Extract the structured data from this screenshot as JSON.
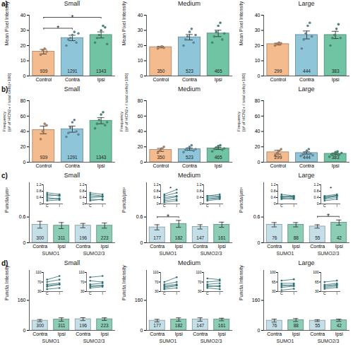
{
  "chart_data": [
    {
      "type": "bar",
      "panel": "a)",
      "title": "Small",
      "ylabel": "Mean Pixel Intensity",
      "categories": [
        "Control",
        "Contra",
        "Ipsi"
      ],
      "values": [
        16,
        25,
        27
      ],
      "errors": [
        1.5,
        1.8,
        2.0
      ],
      "counts": [
        939,
        1291,
        1343
      ],
      "colors": [
        "#f4bb8e",
        "#8ec5d9",
        "#70c3a3"
      ],
      "points": [
        [
          14,
          17,
          18,
          16
        ],
        [
          20,
          24,
          25,
          27,
          29,
          22,
          28
        ],
        [
          22,
          25,
          27,
          30,
          33,
          32,
          21
        ]
      ],
      "annotations": [
        {
          "from": 0,
          "to": 1,
          "text": "*"
        },
        {
          "from": 0,
          "to": 2,
          "text": "*"
        }
      ],
      "ylim": [
        0,
        40
      ],
      "yticks": [
        0,
        10,
        20,
        30,
        40
      ]
    },
    {
      "type": "bar",
      "title": "Medium",
      "ylabel": "Mean Pixel Intensity",
      "categories": [
        "Control",
        "Contra",
        "Ipsi"
      ],
      "values": [
        19,
        25.5,
        28
      ],
      "errors": [
        0.5,
        1.8,
        2.1
      ],
      "counts": [
        350,
        523,
        465
      ],
      "colors": [
        "#f4bb8e",
        "#8ec5d9",
        "#70c3a3"
      ],
      "points": [
        [
          18,
          19,
          19.5,
          18.5
        ],
        [
          20,
          24,
          26,
          29,
          31,
          22,
          27
        ],
        [
          22,
          26,
          29,
          33,
          35,
          24,
          28
        ]
      ],
      "ylim": [
        0,
        40
      ],
      "yticks": [
        0,
        10,
        20,
        30,
        40
      ]
    },
    {
      "type": "bar",
      "title": "Large",
      "ylabel": "Mean Pixel Intensity",
      "categories": [
        "Control",
        "Contra",
        "Ipsi"
      ],
      "values": [
        21,
        27,
        27
      ],
      "errors": [
        0.6,
        2.6,
        2.4
      ],
      "counts": [
        299,
        444,
        383
      ],
      "colors": [
        "#f4bb8e",
        "#8ec5d9",
        "#70c3a3"
      ],
      "points": [
        [
          20,
          21,
          22,
          21.5
        ],
        [
          18,
          24,
          28,
          33,
          35,
          26
        ],
        [
          20,
          25,
          27,
          31,
          34,
          25
        ]
      ],
      "ylim": [
        0,
        40
      ],
      "yticks": [
        0,
        10,
        20,
        30,
        40
      ]
    },
    {
      "type": "bar",
      "panel": "b)",
      "title": "Small",
      "ylabel": "Frequency\n[(# of HCN2+ / total cells)×100]",
      "categories": [
        "Control",
        "Contra",
        "Ipsi"
      ],
      "values": [
        42,
        43,
        54
      ],
      "errors": [
        5,
        4,
        4
      ],
      "counts": [
        939,
        1291,
        1343
      ],
      "colors": [
        "#f4bb8e",
        "#8ec5d9",
        "#70c3a3"
      ],
      "points": [
        [
          30,
          40,
          50,
          48
        ],
        [
          33,
          38,
          45,
          52,
          55,
          40,
          36
        ],
        [
          44,
          50,
          55,
          62,
          65,
          48,
          52
        ]
      ],
      "ylim": [
        0,
        80
      ],
      "yticks": [
        0,
        20,
        40,
        60,
        80
      ]
    },
    {
      "type": "bar",
      "title": "Medium",
      "ylabel": "Frequency\n[(# of HCN2+ / total cells)×100]",
      "categories": [
        "Control",
        "Contra",
        "Ipsi"
      ],
      "values": [
        16,
        17,
        18
      ],
      "errors": [
        2,
        1.5,
        1.5
      ],
      "counts": [
        350,
        523,
        465
      ],
      "colors": [
        "#f4bb8e",
        "#8ec5d9",
        "#70c3a3"
      ],
      "points": [
        [
          12,
          15,
          18,
          20
        ],
        [
          13,
          16,
          18,
          20,
          22,
          15,
          17
        ],
        [
          14,
          17,
          19,
          21,
          22,
          16,
          18
        ]
      ],
      "ylim": [
        0,
        80
      ],
      "yticks": [
        0,
        20,
        40,
        60,
        80
      ]
    },
    {
      "type": "bar",
      "title": "Large",
      "ylabel": "Frequency\n[(# of HCN2+ / total cells)×100]",
      "categories": [
        "Control",
        "Contra",
        "Ipsi"
      ],
      "values": [
        13,
        12,
        11
      ],
      "errors": [
        2.5,
        1.5,
        1
      ],
      "counts": [
        299,
        444,
        383
      ],
      "colors": [
        "#f4bb8e",
        "#8ec5d9",
        "#70c3a3"
      ],
      "points": [
        [
          8,
          12,
          15,
          17
        ],
        [
          8,
          10,
          12,
          15,
          17,
          11,
          9
        ],
        [
          7,
          10,
          11,
          13,
          14,
          10,
          12
        ]
      ],
      "ylim": [
        0,
        80
      ],
      "yticks": [
        0,
        20,
        40,
        60,
        80
      ]
    },
    {
      "type": "bar",
      "panel": "c)",
      "title": "Small",
      "ylabel": "Puncta/µm²",
      "categories": [
        "Contra",
        "Ipsi",
        "Contra",
        "Ipsi"
      ],
      "groups": [
        "SUMO1",
        "SUMO2/3"
      ],
      "values": [
        0.42,
        0.4,
        0.4,
        0.4
      ],
      "errors": [
        0.08,
        0.07,
        0.05,
        0.06
      ],
      "counts": [
        300,
        311,
        196,
        223
      ],
      "colors": [
        "#c4dfe8",
        "#8ccdb6",
        "#c4dfe8",
        "#8ccdb6"
      ],
      "ylim": [
        0,
        1.4
      ],
      "yticks": [
        0,
        0.6
      ],
      "insets": [
        {
          "x": [
            "C",
            "I"
          ],
          "ylim": [
            0,
            1.2
          ],
          "yticks": [
            0,
            0.4,
            0.8,
            1.2
          ],
          "contra": [
            0.2,
            0.3,
            0.4,
            0.5,
            0.6,
            0.7
          ],
          "ipsi": [
            0.25,
            0.35,
            0.3,
            0.55,
            0.5,
            0.6
          ]
        },
        {
          "x": [
            "C",
            "I"
          ],
          "ylim": [
            0,
            1.2
          ],
          "yticks": [
            0,
            0.4,
            0.8,
            1.2
          ],
          "contra": [
            0.3,
            0.5,
            0.2,
            0.6,
            0.4,
            0.7
          ],
          "ipsi": [
            0.25,
            0.45,
            0.3,
            0.5,
            0.45,
            0.6
          ]
        }
      ]
    },
    {
      "type": "bar",
      "title": "Medium",
      "ylabel": "Puncta/µm²",
      "categories": [
        "Contra",
        "Ipsi",
        "Contra",
        "Ipsi"
      ],
      "groups": [
        "SUMO1",
        "SUMO2/3"
      ],
      "values": [
        0.36,
        0.44,
        0.37,
        0.42
      ],
      "errors": [
        0.06,
        0.08,
        0.05,
        0.06
      ],
      "counts": [
        177,
        182,
        147,
        161
      ],
      "colors": [
        "#c4dfe8",
        "#8ccdb6",
        "#c4dfe8",
        "#8ccdb6"
      ],
      "annotations": [
        {
          "from": 0,
          "to": 1,
          "text": "*"
        }
      ],
      "ylim": [
        0,
        1.4
      ],
      "yticks": [
        0,
        0.6
      ],
      "insets": [
        {
          "x": [
            "C",
            "I"
          ],
          "ylim": [
            0,
            1.2
          ],
          "yticks": [
            0,
            0.4,
            0.8,
            1.2
          ],
          "contra": [
            0.1,
            0.2,
            0.3,
            0.4,
            0.5,
            0.6
          ],
          "ipsi": [
            0.2,
            0.3,
            0.45,
            0.5,
            0.7,
            0.9
          ],
          "annotation": "*"
        },
        {
          "x": [
            "C",
            "I"
          ],
          "ylim": [
            0,
            1.2
          ],
          "yticks": [
            0,
            0.4,
            0.8,
            1.2
          ],
          "contra": [
            0.2,
            0.3,
            0.4,
            0.5,
            0.5,
            0.3
          ],
          "ipsi": [
            0.3,
            0.35,
            0.45,
            0.5,
            0.6,
            0.4
          ]
        }
      ]
    },
    {
      "type": "bar",
      "title": "Large",
      "ylabel": "Puncta/µm²",
      "categories": [
        "Contra",
        "Ipsi",
        "Contra",
        "Ipsi"
      ],
      "groups": [
        "SUMO1",
        "SUMO2/3"
      ],
      "values": [
        0.42,
        0.42,
        0.38,
        0.47
      ],
      "errors": [
        0.05,
        0.05,
        0.04,
        0.06
      ],
      "counts": [
        76,
        88,
        55,
        42
      ],
      "colors": [
        "#c4dfe8",
        "#8ccdb6",
        "#c4dfe8",
        "#8ccdb6"
      ],
      "annotations": [
        {
          "from": 2,
          "to": 3,
          "text": "*"
        }
      ],
      "ylim": [
        0,
        1.4
      ],
      "yticks": [
        0,
        0.6
      ],
      "insets": [
        {
          "x": [
            "C",
            "I"
          ],
          "ylim": [
            0,
            1.2
          ],
          "yticks": [
            0,
            0.4,
            0.8,
            1.2
          ],
          "contra": [
            0.3,
            0.4,
            0.5,
            0.6,
            0.45,
            0.35
          ],
          "ipsi": [
            0.35,
            0.45,
            0.4,
            0.5,
            0.5,
            0.3
          ]
        },
        {
          "x": [
            "C",
            "I"
          ],
          "ylim": [
            0,
            1.2
          ],
          "yticks": [
            0,
            0.4,
            0.8,
            1.2
          ],
          "contra": [
            0.2,
            0.3,
            0.35,
            0.4,
            0.5,
            0.45
          ],
          "ipsi": [
            0.3,
            0.4,
            0.5,
            0.55,
            0.6,
            0.5
          ],
          "annotation": "*"
        }
      ]
    },
    {
      "type": "bar",
      "panel": "d)",
      "title": "Small",
      "ylabel": "Puncta Intensity",
      "categories": [
        "Contra",
        "Ipsi",
        "Contra",
        "Ipsi"
      ],
      "groups": [
        "SUMO1",
        "SUMO2/3"
      ],
      "values": [
        52,
        58,
        60,
        60
      ],
      "errors": [
        6,
        9,
        8,
        7
      ],
      "counts": [
        300,
        311,
        196,
        223
      ],
      "colors": [
        "#c4dfe8",
        "#8ccdb6",
        "#c4dfe8",
        "#8ccdb6"
      ],
      "ylim": [
        0,
        320
      ],
      "yticks": [
        0,
        160
      ],
      "insets": [
        {
          "x": [
            "C",
            "I"
          ],
          "ylim": [
            30,
            110
          ],
          "yticks": [
            30,
            70,
            110
          ],
          "contra": [
            40,
            50,
            60,
            70,
            80,
            55
          ],
          "ipsi": [
            45,
            60,
            65,
            80,
            95,
            60
          ]
        },
        {
          "x": [
            "C",
            "I"
          ],
          "ylim": [
            30,
            110
          ],
          "yticks": [
            30,
            70,
            110
          ],
          "contra": [
            45,
            55,
            60,
            75,
            90,
            50
          ],
          "ipsi": [
            50,
            55,
            65,
            70,
            95,
            55
          ]
        }
      ]
    },
    {
      "type": "bar",
      "title": "Medium",
      "ylabel": "Puncta Intensity",
      "categories": [
        "Contra",
        "Ipsi",
        "Contra",
        "Ipsi"
      ],
      "groups": [
        "SUMO1",
        "SUMO2/3"
      ],
      "values": [
        52,
        58,
        58,
        58
      ],
      "errors": [
        7,
        9,
        9,
        7
      ],
      "counts": [
        177,
        182,
        147,
        161
      ],
      "colors": [
        "#c4dfe8",
        "#8ccdb6",
        "#c4dfe8",
        "#8ccdb6"
      ],
      "ylim": [
        0,
        320
      ],
      "yticks": [
        0,
        160
      ],
      "insets": [
        {
          "x": [
            "C",
            "I"
          ],
          "ylim": [
            30,
            110
          ],
          "yticks": [
            30,
            70,
            110
          ],
          "contra": [
            40,
            45,
            55,
            60,
            70,
            50
          ],
          "ipsi": [
            45,
            55,
            60,
            70,
            90,
            55
          ]
        },
        {
          "x": [
            "C",
            "I"
          ],
          "ylim": [
            30,
            110
          ],
          "yticks": [
            30,
            70,
            110
          ],
          "contra": [
            45,
            50,
            60,
            70,
            85,
            55
          ],
          "ipsi": [
            40,
            55,
            65,
            75,
            80,
            50
          ]
        }
      ]
    },
    {
      "type": "bar",
      "title": "Large",
      "ylabel": "Puncta Intensity",
      "categories": [
        "Contra",
        "Ipsi",
        "Contra",
        "Ipsi"
      ],
      "groups": [
        "SUMO1",
        "SUMO2/3"
      ],
      "values": [
        52,
        55,
        52,
        54
      ],
      "errors": [
        8,
        8,
        5,
        6
      ],
      "counts": [
        76,
        88,
        55,
        42
      ],
      "colors": [
        "#c4dfe8",
        "#8ccdb6",
        "#c4dfe8",
        "#8ccdb6"
      ],
      "ylim": [
        0,
        320
      ],
      "yticks": [
        0,
        160
      ],
      "insets": [
        {
          "x": [
            "C",
            "I"
          ],
          "ylim": [
            30,
            100
          ],
          "yticks": [
            30,
            65,
            100
          ],
          "contra": [
            35,
            45,
            50,
            60,
            70,
            55
          ],
          "ipsi": [
            40,
            50,
            55,
            60,
            75,
            50
          ]
        },
        {
          "x": [
            "C",
            "I"
          ],
          "ylim": [
            30,
            100
          ],
          "yticks": [
            30,
            65,
            100
          ],
          "contra": [
            40,
            45,
            50,
            55,
            65,
            50
          ],
          "ipsi": [
            45,
            50,
            55,
            60,
            70,
            55
          ]
        }
      ]
    }
  ]
}
